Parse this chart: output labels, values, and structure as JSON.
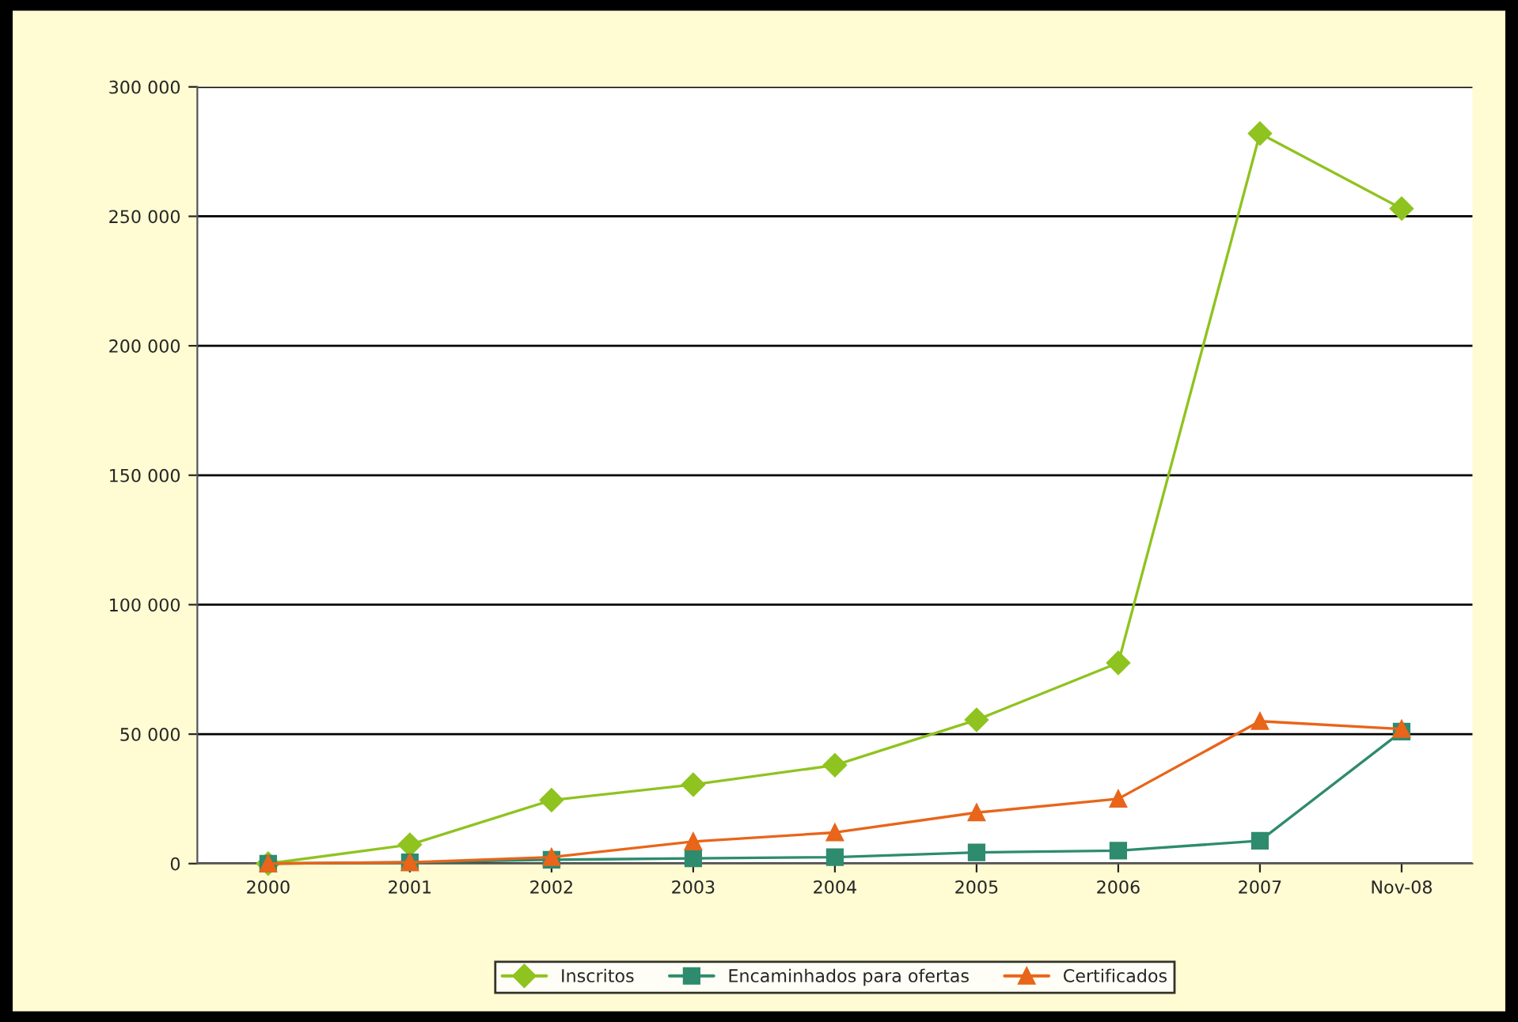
{
  "chart_data": {
    "type": "line",
    "categories": [
      "2000",
      "2001",
      "2002",
      "2003",
      "2004",
      "2005",
      "2006",
      "2007",
      "Nov-08"
    ],
    "series": [
      {
        "name": "Inscritos",
        "color": "#8fc31f",
        "marker": "diamond",
        "values": [
          0,
          7300,
          24500,
          30500,
          38000,
          55500,
          77500,
          282000,
          253000
        ]
      },
      {
        "name": "Encaminhados para ofertas",
        "color": "#2e8b6e",
        "marker": "square",
        "values": [
          0,
          500,
          1500,
          2000,
          2500,
          4300,
          5000,
          8800,
          51000
        ]
      },
      {
        "name": "Certificados",
        "color": "#e8651a",
        "marker": "triangle",
        "values": [
          0,
          500,
          2500,
          8500,
          12000,
          19700,
          25000,
          55000,
          52000
        ]
      }
    ],
    "ylim": [
      0,
      300000
    ],
    "yticks": [
      {
        "value": 0,
        "label": "0"
      },
      {
        "value": 50000,
        "label": "50 000"
      },
      {
        "value": 100000,
        "label": "100 000"
      },
      {
        "value": 150000,
        "label": "150 000"
      },
      {
        "value": 200000,
        "label": "200 000"
      },
      {
        "value": 250000,
        "label": "250 000"
      },
      {
        "value": 300000,
        "label": "300 000"
      }
    ],
    "grid": "y",
    "legend": "bottom"
  }
}
